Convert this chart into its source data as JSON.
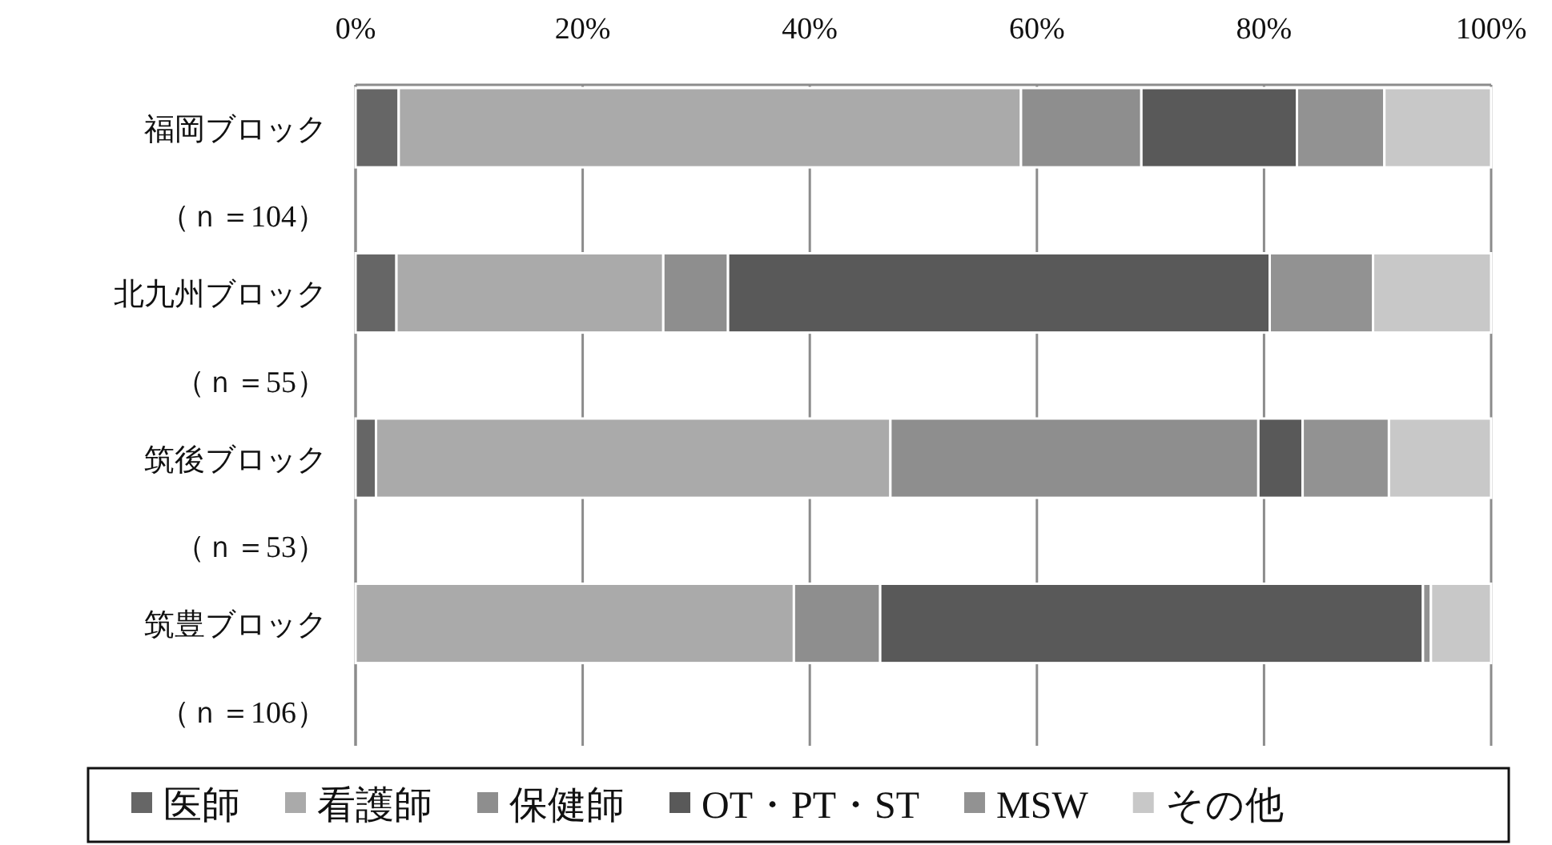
{
  "chart_data": {
    "type": "bar",
    "orientation": "horizontal",
    "stacked": true,
    "categories": [
      "福岡ブロック（ｎ＝104）",
      "北九州ブロック（ｎ＝55）",
      "筑後ブロック（ｎ＝53）",
      "筑豊ブロック（ｎ＝106）"
    ],
    "series": [
      {
        "name": "医師",
        "color": "#666666",
        "values": [
          3.8,
          3.6,
          1.8,
          0
        ]
      },
      {
        "name": "看護師",
        "color": "#aaaaaa",
        "values": [
          54.8,
          23.5,
          45.3,
          38.6
        ]
      },
      {
        "name": "保健師",
        "color": "#8e8e8e",
        "values": [
          10.6,
          5.7,
          32.4,
          7.6
        ]
      },
      {
        "name": "OT・PT・ST",
        "color": "#595959",
        "values": [
          13.7,
          47.7,
          3.9,
          47.8
        ]
      },
      {
        "name": "MSW",
        "color": "#929292",
        "values": [
          7.7,
          9.1,
          7.6,
          0.7
        ]
      },
      {
        "name": "その他",
        "color": "#c8c8c8",
        "values": [
          9.4,
          10.4,
          9.0,
          5.3
        ]
      }
    ],
    "xlim": [
      0,
      100
    ],
    "xticks": [
      {
        "value": 0,
        "label": "0%"
      },
      {
        "value": 20,
        "label": "20%"
      },
      {
        "value": 40,
        "label": "40%"
      },
      {
        "value": 60,
        "label": "60%"
      },
      {
        "value": 80,
        "label": "80%"
      },
      {
        "value": 100,
        "label": "100%"
      }
    ],
    "grid": "x",
    "legend": "bottom"
  }
}
